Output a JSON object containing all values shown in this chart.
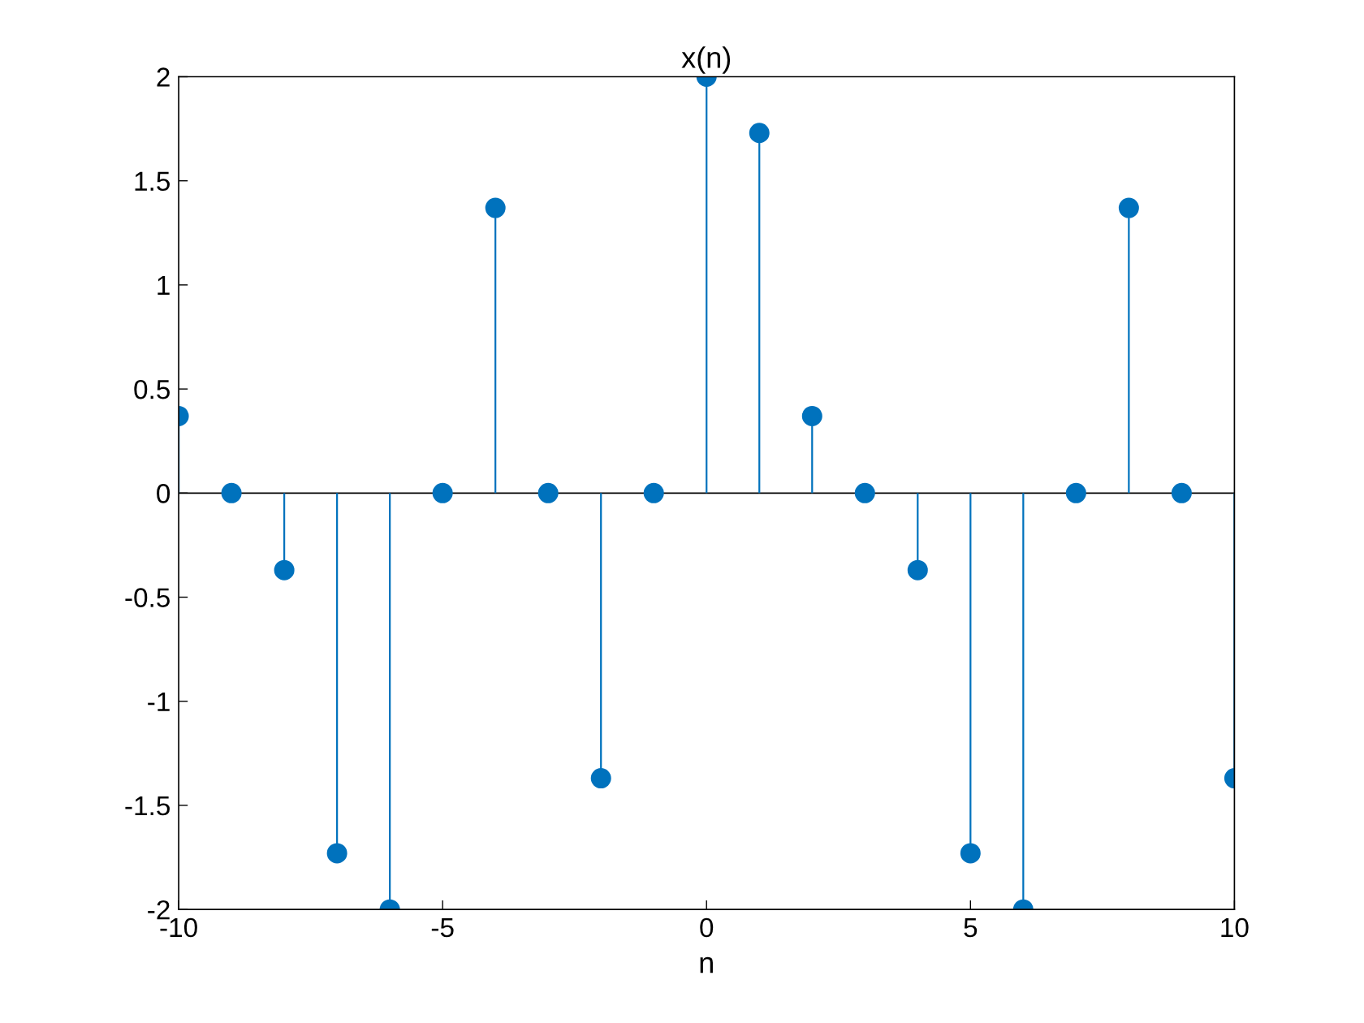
{
  "chart_data": {
    "type": "lollipop",
    "title": "x(n)",
    "xlabel": "n",
    "x": [
      -10,
      -9,
      -8,
      -7,
      -6,
      -5,
      -4,
      -3,
      -2,
      -1,
      0,
      1,
      2,
      3,
      4,
      5,
      6,
      7,
      8,
      9,
      10
    ],
    "series": [
      {
        "color": "#0072bd",
        "values": [
          0.37,
          0,
          -0.37,
          -1.73,
          -2,
          0,
          1.37,
          0,
          -1.37,
          0,
          2,
          1.73,
          0.37,
          0,
          -0.37,
          -1.73,
          -2,
          0,
          1.37,
          0,
          -1.37
        ]
      }
    ],
    "xlim": [
      -10,
      10
    ],
    "xticks": [
      -10,
      -5,
      0,
      5,
      10
    ],
    "ylim": [
      -2,
      2
    ],
    "yticks": [
      -2,
      -1.5,
      -1,
      -0.5,
      0,
      0.5,
      1,
      1.5,
      2
    ],
    "ref_lines": [
      {
        "axis": "y",
        "value": 0,
        "color": "#000000"
      }
    ],
    "marker": "circle",
    "legend": false
  }
}
